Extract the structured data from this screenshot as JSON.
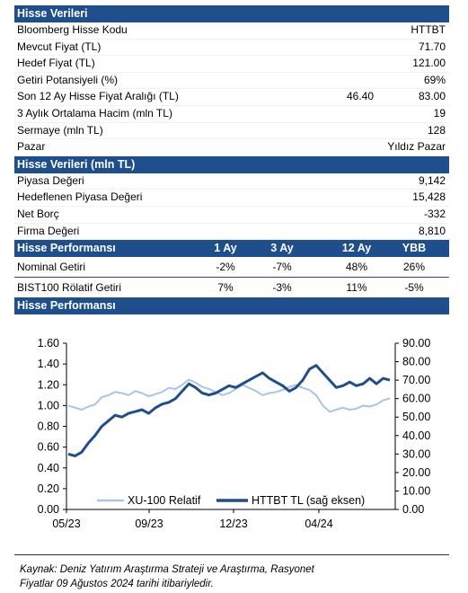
{
  "section1": {
    "title": "Hisse Verileri",
    "rows": [
      {
        "label": "Bloomberg Hisse Kodu",
        "mid": "",
        "value": "HTTBT"
      },
      {
        "label": "Mevcut Fiyat (TL)",
        "mid": "",
        "value": "71.70"
      },
      {
        "label": "Hedef Fiyat (TL)",
        "mid": "",
        "value": "121.00"
      },
      {
        "label": "Getiri Potansiyeli (%)",
        "mid": "",
        "value": "69%"
      },
      {
        "label": "Son 12 Ay Hisse Fiyat Aralığı (TL)",
        "mid": "46.40",
        "value": "83.00"
      },
      {
        "label": "3 Aylık Ortalama Hacim (mln TL)",
        "mid": "",
        "value": "19"
      },
      {
        "label": "Sermaye (mln TL)",
        "mid": "",
        "value": "128"
      },
      {
        "label": "Pazar",
        "mid": "",
        "value": "Yıldız Pazar"
      }
    ]
  },
  "section2": {
    "title": "Hisse Verileri (mln TL)",
    "rows": [
      {
        "label": "Piyasa Değeri",
        "value": "9,142"
      },
      {
        "label": "Hedeflenen Piyasa Değeri",
        "value": "15,428"
      },
      {
        "label": "Net Borç",
        "value": "-332"
      },
      {
        "label": "Firma Değeri",
        "value": "8,810"
      }
    ]
  },
  "section3": {
    "title": "Hisse Performansı",
    "columns": [
      "1 Ay",
      "3 Ay",
      "12 Ay",
      "YBB"
    ],
    "rows": [
      {
        "label": "Nominal Getiri",
        "values": [
          "-2%",
          "-7%",
          "48%",
          "26%"
        ]
      },
      {
        "label": "BIST100 Rölatif Getiri",
        "values": [
          "7%",
          "-3%",
          "11%",
          "-5%"
        ]
      }
    ]
  },
  "section4": {
    "title": "Hisse Performansı"
  },
  "colors": {
    "header_bg": "#1f4e8c",
    "series_relative": "#a9c4e6",
    "series_price": "#1f4e8c"
  },
  "chart_data": {
    "type": "line",
    "x_ticks": [
      "05/23",
      "09/23",
      "12/23",
      "04/24"
    ],
    "y_left": {
      "lim": [
        0.0,
        1.6
      ],
      "ticks": [
        "0.00",
        "0.20",
        "0.40",
        "0.60",
        "0.80",
        "1.00",
        "1.20",
        "1.40",
        "1.60"
      ]
    },
    "y_right": {
      "lim": [
        0,
        90
      ],
      "ticks": [
        "0.00",
        "10.00",
        "20.00",
        "30.00",
        "40.00",
        "50.00",
        "60.00",
        "70.00",
        "80.00",
        "90.00"
      ]
    },
    "legend": {
      "placement": "bottom-center"
    },
    "series": [
      {
        "name": "XU-100 Relatif",
        "axis": "left",
        "values": [
          1.0,
          0.98,
          0.96,
          0.99,
          1.01,
          1.08,
          1.1,
          1.13,
          1.12,
          1.1,
          1.14,
          1.12,
          1.09,
          1.11,
          1.13,
          1.17,
          1.16,
          1.2,
          1.25,
          1.22,
          1.18,
          1.16,
          1.13,
          1.1,
          1.12,
          1.16,
          1.2,
          1.17,
          1.14,
          1.1,
          1.12,
          1.13,
          1.15,
          1.18,
          1.2,
          1.17,
          1.15,
          1.1,
          1.0,
          0.94,
          0.96,
          0.98,
          0.96,
          0.97,
          1.0,
          0.99,
          1.01,
          1.05,
          1.07
        ]
      },
      {
        "name": "HTTBT TL (sağ eksen)",
        "axis": "right",
        "values": [
          30,
          29,
          31,
          36,
          40,
          45,
          48,
          51,
          50,
          52,
          53,
          54,
          52,
          55,
          57,
          58,
          60,
          64,
          68,
          66,
          63,
          62,
          63,
          65,
          67,
          66,
          68,
          70,
          72,
          74,
          71,
          69,
          67,
          64,
          66,
          70,
          76,
          78,
          74,
          70,
          66,
          67,
          69,
          67,
          68,
          71,
          68,
          71,
          70
        ]
      }
    ]
  },
  "footnote": {
    "line1": "Kaynak: Deniz Yatırım Araştırma Strateji ve Araştırma, Rasyonet",
    "line2": "Fiyatlar 09 Ağustos 2024 tarihi itibariyledir."
  }
}
